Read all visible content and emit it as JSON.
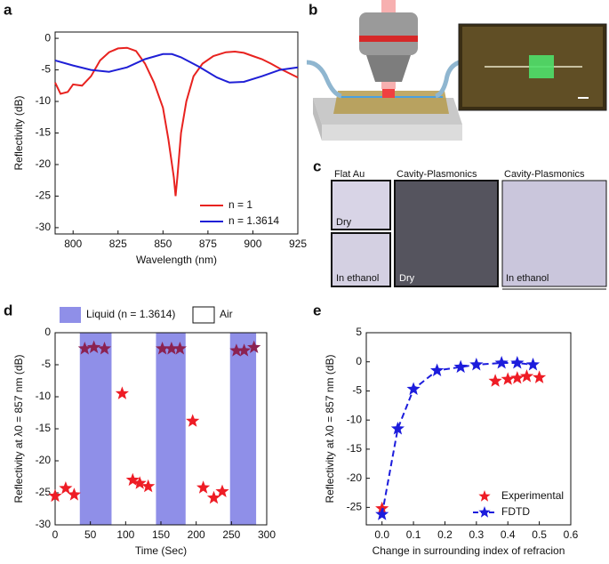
{
  "panel_labels": [
    "a",
    "b",
    "c",
    "d",
    "e"
  ],
  "panel_c": {
    "flat_title": "Flat Au",
    "flat_dry": "Dry",
    "flat_ethanol": "In ethanol",
    "cavity_dry_title": "Cavity-Plasmonics",
    "cavity_dry_label": "Dry",
    "cavity_ethanol_title": "Cavity-Plasmonics",
    "cavity_ethanol_label": "In ethanol"
  },
  "chart_data": [
    {
      "type": "line",
      "xlabel": "Wavelength (nm)",
      "ylabel": "Reflectivity (dB)",
      "xlim": [
        790,
        925
      ],
      "xticks": [
        800,
        825,
        850,
        875,
        900,
        925
      ],
      "ylim": [
        -31,
        1
      ],
      "yticks": [
        -30,
        -25,
        -20,
        -15,
        -10,
        -5,
        0
      ],
      "legend": "lower right",
      "series": [
        {
          "name": "n = 1",
          "color": "#e8221f",
          "x": [
            790,
            793,
            797,
            800,
            805,
            810,
            815,
            820,
            825,
            830,
            835,
            840,
            845,
            850,
            853,
            856,
            857,
            858,
            860,
            863,
            867,
            872,
            878,
            885,
            890,
            895,
            900,
            905,
            910,
            915,
            920,
            925
          ],
          "values": [
            -7,
            -8.8,
            -8.5,
            -7.3,
            -7.5,
            -6,
            -3.5,
            -2.2,
            -1.6,
            -1.5,
            -2,
            -4,
            -7,
            -11,
            -16,
            -22,
            -25,
            -22,
            -15,
            -10,
            -6,
            -4,
            -2.8,
            -2.2,
            -2.1,
            -2.3,
            -2.8,
            -3.3,
            -4,
            -4.8,
            -5.5,
            -6.2
          ]
        },
        {
          "name": "n = 1.3614",
          "color": "#1f1fd6",
          "x": [
            790,
            800,
            810,
            820,
            830,
            840,
            850,
            855,
            860,
            870,
            880,
            887,
            895,
            905,
            915,
            925
          ],
          "values": [
            -3.5,
            -4.3,
            -5,
            -5.3,
            -4.6,
            -3.3,
            -2.5,
            -2.5,
            -3,
            -4.5,
            -6.2,
            -7,
            -6.9,
            -6,
            -5,
            -4.6
          ]
        }
      ]
    },
    {
      "type": "scatter",
      "xlabel": "Time (Sec)",
      "ylabel": "Reflectivity at λ0 = 857 nm (dB)",
      "xlim": [
        0,
        300
      ],
      "xticks": [
        0,
        50,
        100,
        150,
        200,
        250,
        300
      ],
      "ylim": [
        -30,
        0
      ],
      "yticks": [
        -30,
        -25,
        -20,
        -15,
        -10,
        -5,
        0
      ],
      "marker": "star",
      "regions": [
        {
          "label": "Liquid (n = 1.3614)",
          "color": "#8f8fe8",
          "spans": [
            [
              35,
              80
            ],
            [
              143,
              185
            ],
            [
              248,
              285
            ]
          ]
        },
        {
          "label": "Air",
          "color": "#ffffff"
        }
      ],
      "series": [
        {
          "color": "#ee1c25",
          "x": [
            0,
            15,
            27,
            95,
            110,
            120,
            132,
            195,
            210,
            225,
            237
          ],
          "values": [
            -25.5,
            -24.3,
            -25.3,
            -9.5,
            -23,
            -23.5,
            -24,
            -13.8,
            -24.2,
            -25.8,
            -24.8
          ]
        },
        {
          "color": "#8b2252",
          "x": [
            42,
            55,
            70,
            152,
            165,
            177,
            257,
            268,
            282
          ],
          "values": [
            -2.5,
            -2.3,
            -2.5,
            -2.5,
            -2.5,
            -2.5,
            -2.8,
            -2.8,
            -2.3
          ]
        }
      ]
    },
    {
      "type": "scatter",
      "xlabel": "Change in surrounding index of refracion",
      "ylabel": "Reflectivity at λ0 = 857 nm (dB)",
      "xlim": [
        -0.05,
        0.6
      ],
      "xticks": [
        {
          "value": 0,
          "label": "0.0"
        },
        0.1,
        0.2,
        0.3,
        0.4,
        0.5,
        0.6
      ],
      "ylim": [
        -28,
        5
      ],
      "yticks": [
        -25,
        -20,
        -15,
        -10,
        -5,
        0,
        5
      ],
      "marker": "star",
      "legend": "lower right",
      "series": [
        {
          "name": "Experimental",
          "color": "#ee1c25",
          "x": [
            0,
            0.36,
            0.4,
            0.43,
            0.46,
            0.5
          ],
          "values": [
            -25.2,
            -3.3,
            -3,
            -2.8,
            -2.5,
            -2.7
          ]
        },
        {
          "name": "FDTD",
          "color": "#1c1cdc",
          "linestyle": "dashed",
          "x": [
            0,
            0.05,
            0.1,
            0.175,
            0.25,
            0.3,
            0.38,
            0.43,
            0.48
          ],
          "values": [
            -26.2,
            -11.5,
            -4.7,
            -1.5,
            -0.9,
            -0.5,
            -0.2,
            -0.2,
            -0.5
          ]
        }
      ]
    }
  ]
}
